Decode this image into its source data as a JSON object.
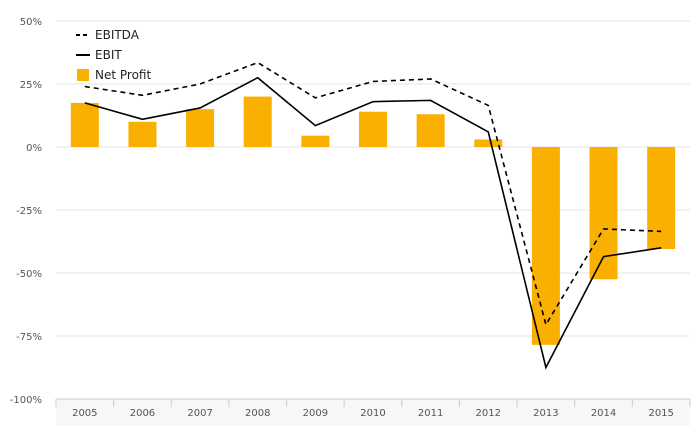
{
  "chart_data": {
    "type": "bar",
    "categories": [
      "2005",
      "2006",
      "2007",
      "2008",
      "2009",
      "2010",
      "2011",
      "2012",
      "2013",
      "2014",
      "2015"
    ],
    "series": [
      {
        "name": "EBITDA",
        "kind": "line",
        "style": "dashed",
        "color": "#000000",
        "values": [
          24,
          20.5,
          25,
          33.5,
          19.5,
          26,
          27,
          16.5,
          -70.5,
          -32.5,
          -33.5
        ]
      },
      {
        "name": "EBIT",
        "kind": "line",
        "style": "solid",
        "color": "#000000",
        "values": [
          17.5,
          11,
          15.5,
          27.5,
          8.5,
          18,
          18.5,
          6,
          -87.5,
          -43.5,
          -40
        ]
      },
      {
        "name": "Net Profit",
        "kind": "bar",
        "color": "#f9b000",
        "values": [
          17.5,
          10,
          15,
          20,
          4.5,
          14,
          13,
          3,
          -78.5,
          -52.5,
          -40.5
        ]
      }
    ],
    "ylim": [
      -100,
      50
    ],
    "yticks": [
      50,
      25,
      0,
      -25,
      -50,
      -75,
      -100
    ],
    "ytick_labels": [
      "50%",
      "25%",
      "0%",
      "-25%",
      "-50%",
      "-75%",
      "-100%"
    ],
    "grid": true,
    "legend": "top-left",
    "title": "",
    "xlabel": "",
    "ylabel": ""
  }
}
